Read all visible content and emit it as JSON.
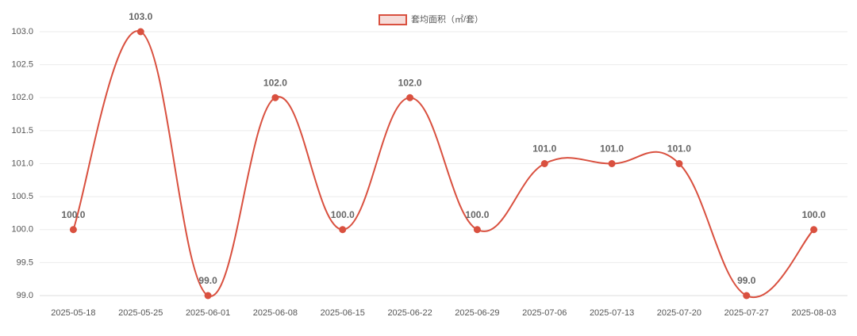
{
  "chart_data": {
    "type": "line",
    "legend": "套均面积（㎡/套）",
    "categories": [
      "2025-05-18",
      "2025-05-25",
      "2025-06-01",
      "2025-06-08",
      "2025-06-15",
      "2025-06-22",
      "2025-06-29",
      "2025-07-06",
      "2025-07-13",
      "2025-07-20",
      "2025-07-27",
      "2025-08-03"
    ],
    "series": [
      {
        "name": "套均面积（㎡/套）",
        "color": "#d9503f",
        "values": [
          100,
          103,
          99,
          102,
          100,
          102,
          100,
          101,
          101,
          101,
          99,
          100
        ],
        "value_labels": [
          "100.0",
          "103.0",
          "99.0",
          "102.0",
          "100.0",
          "102.0",
          "100.0",
          "101.0",
          "101.0",
          "101.0",
          "99.0",
          "100.0"
        ]
      }
    ],
    "ylim": [
      99,
      103
    ],
    "yticks": [
      {
        "value": 99,
        "label": "99.0"
      },
      99.5,
      {
        "value": 100,
        "label": "100.0"
      },
      100.5,
      {
        "value": 101,
        "label": "101.0"
      },
      101.5,
      {
        "value": 102,
        "label": "102.0"
      },
      102.5,
      {
        "value": 103,
        "label": "103.0"
      }
    ],
    "grid": true,
    "legend_position": "top"
  }
}
